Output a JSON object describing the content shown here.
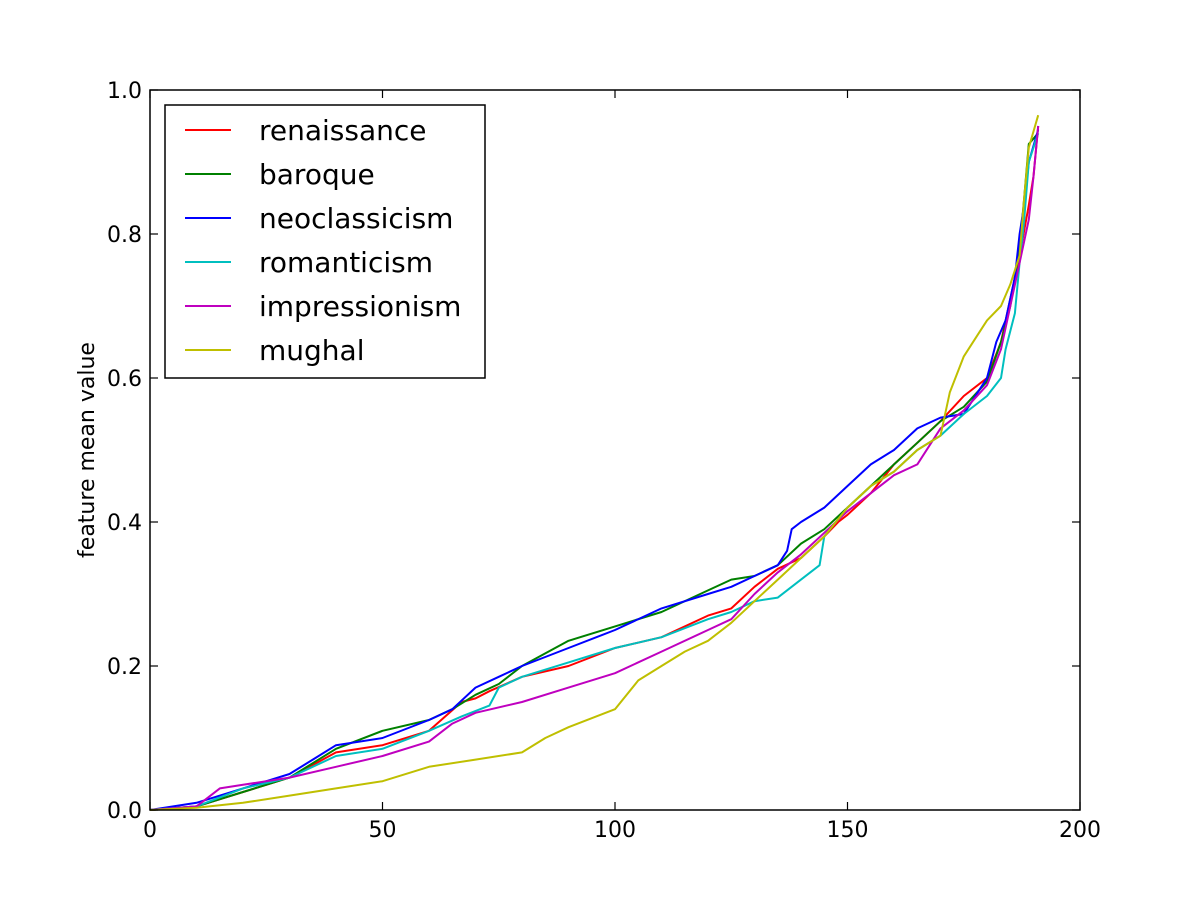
{
  "chart_data": {
    "type": "line",
    "title": "",
    "xlabel": "",
    "ylabel": "feature mean value",
    "xlim": [
      0,
      200
    ],
    "ylim": [
      0.0,
      1.0
    ],
    "xticks": [
      "0",
      "50",
      "100",
      "150",
      "200"
    ],
    "yticks": [
      "0.0",
      "0.2",
      "0.4",
      "0.6",
      "0.8",
      "1.0"
    ],
    "grid": false,
    "legend_position": "upper-left",
    "series": [
      {
        "name": "renaissance",
        "color": "#ff0000",
        "points": [
          [
            0,
            0.0
          ],
          [
            10,
            0.005
          ],
          [
            20,
            0.025
          ],
          [
            30,
            0.045
          ],
          [
            40,
            0.08
          ],
          [
            50,
            0.09
          ],
          [
            60,
            0.11
          ],
          [
            67,
            0.15
          ],
          [
            70,
            0.155
          ],
          [
            73,
            0.165
          ],
          [
            80,
            0.185
          ],
          [
            90,
            0.2
          ],
          [
            100,
            0.225
          ],
          [
            110,
            0.24
          ],
          [
            120,
            0.27
          ],
          [
            125,
            0.28
          ],
          [
            130,
            0.31
          ],
          [
            135,
            0.335
          ],
          [
            140,
            0.35
          ],
          [
            145,
            0.38
          ],
          [
            148,
            0.4
          ],
          [
            150,
            0.41
          ],
          [
            155,
            0.44
          ],
          [
            160,
            0.48
          ],
          [
            165,
            0.51
          ],
          [
            170,
            0.54
          ],
          [
            175,
            0.575
          ],
          [
            180,
            0.6
          ],
          [
            183,
            0.65
          ],
          [
            185,
            0.71
          ],
          [
            187,
            0.77
          ],
          [
            189,
            0.84
          ],
          [
            190,
            0.88
          ],
          [
            191,
            0.95
          ]
        ]
      },
      {
        "name": "baroque",
        "color": "#008000",
        "points": [
          [
            0,
            0.0
          ],
          [
            10,
            0.005
          ],
          [
            20,
            0.025
          ],
          [
            30,
            0.045
          ],
          [
            40,
            0.085
          ],
          [
            50,
            0.11
          ],
          [
            60,
            0.125
          ],
          [
            65,
            0.14
          ],
          [
            70,
            0.16
          ],
          [
            75,
            0.175
          ],
          [
            80,
            0.2
          ],
          [
            90,
            0.235
          ],
          [
            100,
            0.255
          ],
          [
            110,
            0.275
          ],
          [
            120,
            0.305
          ],
          [
            125,
            0.32
          ],
          [
            130,
            0.325
          ],
          [
            135,
            0.34
          ],
          [
            140,
            0.37
          ],
          [
            145,
            0.39
          ],
          [
            150,
            0.42
          ],
          [
            155,
            0.45
          ],
          [
            160,
            0.48
          ],
          [
            165,
            0.51
          ],
          [
            170,
            0.54
          ],
          [
            175,
            0.56
          ],
          [
            180,
            0.595
          ],
          [
            183,
            0.65
          ],
          [
            185,
            0.7
          ],
          [
            187,
            0.78
          ],
          [
            188,
            0.85
          ],
          [
            189,
            0.925
          ],
          [
            191,
            0.94
          ]
        ]
      },
      {
        "name": "neoclassicism",
        "color": "#0000ff",
        "points": [
          [
            0,
            0.0
          ],
          [
            10,
            0.01
          ],
          [
            20,
            0.03
          ],
          [
            30,
            0.05
          ],
          [
            35,
            0.07
          ],
          [
            40,
            0.09
          ],
          [
            50,
            0.1
          ],
          [
            60,
            0.125
          ],
          [
            65,
            0.14
          ],
          [
            70,
            0.17
          ],
          [
            75,
            0.185
          ],
          [
            80,
            0.2
          ],
          [
            90,
            0.225
          ],
          [
            100,
            0.25
          ],
          [
            110,
            0.28
          ],
          [
            120,
            0.3
          ],
          [
            125,
            0.31
          ],
          [
            130,
            0.325
          ],
          [
            135,
            0.34
          ],
          [
            137,
            0.36
          ],
          [
            138,
            0.39
          ],
          [
            140,
            0.4
          ],
          [
            145,
            0.42
          ],
          [
            150,
            0.45
          ],
          [
            155,
            0.48
          ],
          [
            160,
            0.5
          ],
          [
            165,
            0.53
          ],
          [
            170,
            0.545
          ],
          [
            175,
            0.55
          ],
          [
            180,
            0.6
          ],
          [
            182,
            0.65
          ],
          [
            184,
            0.68
          ],
          [
            186,
            0.74
          ],
          [
            187,
            0.8
          ],
          [
            188,
            0.84
          ],
          [
            189,
            0.9
          ],
          [
            191,
            0.945
          ]
        ]
      },
      {
        "name": "romanticism",
        "color": "#00bfbf",
        "points": [
          [
            0,
            0.0
          ],
          [
            10,
            0.005
          ],
          [
            20,
            0.03
          ],
          [
            30,
            0.045
          ],
          [
            40,
            0.075
          ],
          [
            50,
            0.085
          ],
          [
            60,
            0.11
          ],
          [
            67,
            0.13
          ],
          [
            73,
            0.145
          ],
          [
            75,
            0.17
          ],
          [
            80,
            0.185
          ],
          [
            90,
            0.205
          ],
          [
            100,
            0.225
          ],
          [
            110,
            0.24
          ],
          [
            120,
            0.265
          ],
          [
            125,
            0.275
          ],
          [
            130,
            0.29
          ],
          [
            135,
            0.295
          ],
          [
            140,
            0.32
          ],
          [
            144,
            0.34
          ],
          [
            145,
            0.38
          ],
          [
            150,
            0.42
          ],
          [
            155,
            0.45
          ],
          [
            160,
            0.47
          ],
          [
            165,
            0.5
          ],
          [
            170,
            0.52
          ],
          [
            175,
            0.55
          ],
          [
            180,
            0.575
          ],
          [
            183,
            0.6
          ],
          [
            184,
            0.64
          ],
          [
            186,
            0.69
          ],
          [
            187,
            0.76
          ],
          [
            188,
            0.82
          ],
          [
            189,
            0.9
          ],
          [
            191,
            0.94
          ]
        ]
      },
      {
        "name": "impressionism",
        "color": "#bf00bf",
        "points": [
          [
            0,
            0.0
          ],
          [
            10,
            0.005
          ],
          [
            15,
            0.03
          ],
          [
            20,
            0.035
          ],
          [
            30,
            0.045
          ],
          [
            40,
            0.06
          ],
          [
            50,
            0.075
          ],
          [
            60,
            0.095
          ],
          [
            65,
            0.12
          ],
          [
            70,
            0.135
          ],
          [
            80,
            0.15
          ],
          [
            90,
            0.17
          ],
          [
            100,
            0.19
          ],
          [
            110,
            0.22
          ],
          [
            120,
            0.25
          ],
          [
            125,
            0.265
          ],
          [
            130,
            0.3
          ],
          [
            135,
            0.33
          ],
          [
            140,
            0.355
          ],
          [
            145,
            0.385
          ],
          [
            150,
            0.415
          ],
          [
            155,
            0.44
          ],
          [
            160,
            0.465
          ],
          [
            165,
            0.48
          ],
          [
            170,
            0.53
          ],
          [
            175,
            0.555
          ],
          [
            180,
            0.59
          ],
          [
            183,
            0.64
          ],
          [
            185,
            0.7
          ],
          [
            187,
            0.76
          ],
          [
            189,
            0.82
          ],
          [
            190,
            0.88
          ],
          [
            191,
            0.95
          ]
        ]
      },
      {
        "name": "mughal",
        "color": "#bfbf00",
        "points": [
          [
            0,
            0.0
          ],
          [
            10,
            0.003
          ],
          [
            20,
            0.01
          ],
          [
            30,
            0.02
          ],
          [
            40,
            0.03
          ],
          [
            50,
            0.04
          ],
          [
            60,
            0.06
          ],
          [
            70,
            0.07
          ],
          [
            80,
            0.08
          ],
          [
            85,
            0.1
          ],
          [
            90,
            0.115
          ],
          [
            100,
            0.14
          ],
          [
            105,
            0.18
          ],
          [
            110,
            0.2
          ],
          [
            115,
            0.22
          ],
          [
            120,
            0.235
          ],
          [
            125,
            0.26
          ],
          [
            130,
            0.29
          ],
          [
            135,
            0.32
          ],
          [
            140,
            0.35
          ],
          [
            145,
            0.38
          ],
          [
            150,
            0.42
          ],
          [
            155,
            0.45
          ],
          [
            160,
            0.47
          ],
          [
            165,
            0.5
          ],
          [
            170,
            0.52
          ],
          [
            172,
            0.58
          ],
          [
            175,
            0.63
          ],
          [
            178,
            0.66
          ],
          [
            180,
            0.68
          ],
          [
            183,
            0.7
          ],
          [
            185,
            0.73
          ],
          [
            187,
            0.77
          ],
          [
            188,
            0.85
          ],
          [
            189,
            0.92
          ],
          [
            191,
            0.965
          ]
        ]
      }
    ]
  }
}
